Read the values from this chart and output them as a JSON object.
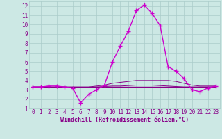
{
  "xlabel": "Windchill (Refroidissement éolien,°C)",
  "xlim": [
    -0.5,
    23.5
  ],
  "ylim": [
    1,
    12.5
  ],
  "xticks": [
    0,
    1,
    2,
    3,
    4,
    5,
    6,
    7,
    8,
    9,
    10,
    11,
    12,
    13,
    14,
    15,
    16,
    17,
    18,
    19,
    20,
    21,
    22,
    23
  ],
  "yticks": [
    1,
    2,
    3,
    4,
    5,
    6,
    7,
    8,
    9,
    10,
    11,
    12
  ],
  "background_color": "#cce8e4",
  "grid_color": "#aaccca",
  "line_color": "#880088",
  "line_color2": "#cc00cc",
  "line1_x": [
    0,
    1,
    2,
    3,
    4,
    5,
    6,
    7,
    8,
    9,
    10,
    11,
    12,
    13,
    14,
    15,
    16,
    17,
    18,
    19,
    20,
    21,
    22,
    23
  ],
  "line1_y": [
    3.3,
    3.3,
    3.4,
    3.4,
    3.3,
    3.2,
    1.6,
    2.5,
    3.0,
    3.5,
    6.0,
    7.7,
    9.3,
    11.5,
    12.1,
    11.2,
    9.9,
    5.5,
    5.0,
    4.2,
    3.0,
    2.8,
    3.2,
    3.4
  ],
  "line2_x": [
    0,
    1,
    2,
    3,
    4,
    5,
    6,
    7,
    8,
    9,
    10,
    11,
    12,
    13,
    14,
    15,
    16,
    17,
    18,
    19,
    20,
    21,
    22,
    23
  ],
  "line2_y": [
    3.3,
    3.3,
    3.3,
    3.3,
    3.3,
    3.3,
    3.3,
    3.3,
    3.4,
    3.5,
    3.7,
    3.8,
    3.9,
    4.0,
    4.0,
    4.0,
    4.0,
    4.0,
    3.9,
    3.7,
    3.5,
    3.4,
    3.4,
    3.4
  ],
  "line3_x": [
    0,
    1,
    2,
    3,
    4,
    5,
    6,
    7,
    8,
    9,
    10,
    11,
    12,
    13,
    14,
    15,
    16,
    17,
    18,
    19,
    20,
    21,
    22,
    23
  ],
  "line3_y": [
    3.3,
    3.3,
    3.3,
    3.3,
    3.3,
    3.3,
    3.3,
    3.3,
    3.3,
    3.3,
    3.3,
    3.3,
    3.3,
    3.3,
    3.3,
    3.3,
    3.3,
    3.3,
    3.3,
    3.3,
    3.3,
    3.3,
    3.3,
    3.3
  ],
  "line4_x": [
    0,
    1,
    2,
    3,
    4,
    5,
    6,
    7,
    8,
    9,
    10,
    11,
    12,
    13,
    14,
    15,
    16,
    17,
    18,
    19,
    20,
    21,
    22,
    23
  ],
  "line4_y": [
    3.3,
    3.3,
    3.3,
    3.25,
    3.3,
    3.25,
    3.2,
    3.25,
    3.3,
    3.35,
    3.4,
    3.4,
    3.45,
    3.5,
    3.5,
    3.5,
    3.45,
    3.4,
    3.35,
    3.3,
    3.3,
    3.3,
    3.3,
    3.3
  ],
  "tick_fontsize": 5.5,
  "label_fontsize": 6.0
}
